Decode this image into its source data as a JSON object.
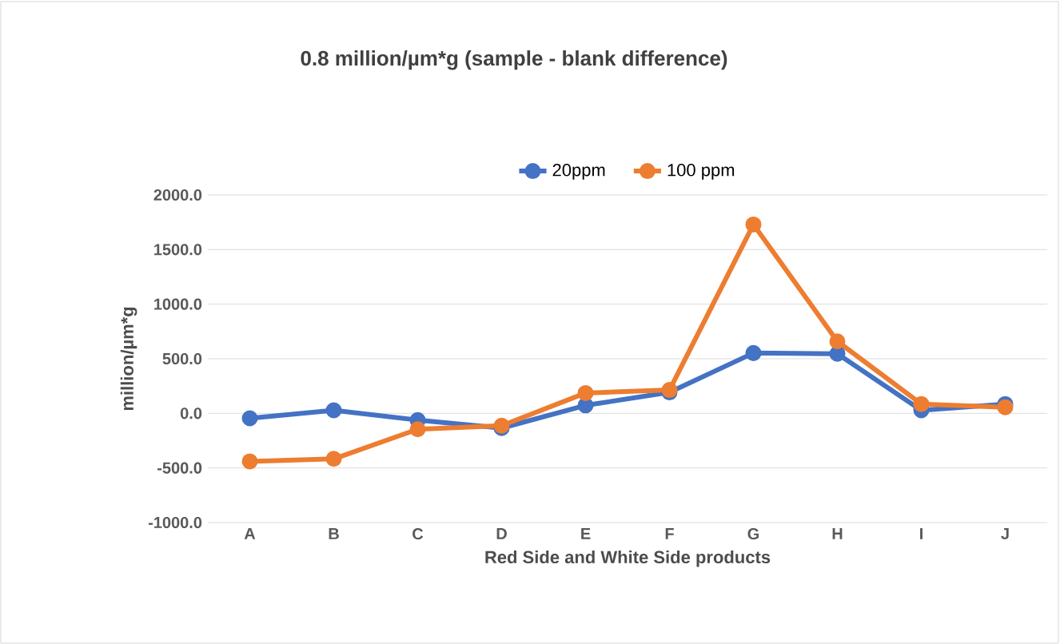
{
  "chart_data": {
    "type": "line",
    "title": "0.8 million/µm*g (sample - blank difference)",
    "xlabel": "Red Side and White Side products",
    "ylabel": "million/µm*g",
    "categories": [
      "A",
      "B",
      "C",
      "D",
      "E",
      "F",
      "G",
      "H",
      "I",
      "J"
    ],
    "series": [
      {
        "name": "20ppm",
        "color": "#4472c4",
        "values": [
          -45,
          28,
          -62,
          -135,
          73,
          192,
          552,
          546,
          28,
          85
        ]
      },
      {
        "name": "100 ppm",
        "color": "#ed7d31",
        "values": [
          -440,
          -417,
          -146,
          -113,
          186,
          214,
          1730,
          659,
          85,
          56
        ]
      }
    ],
    "ylim": [
      -1000,
      2000
    ],
    "yticks": [
      {
        "value": -1000,
        "label": "-1000.0"
      },
      {
        "value": -500,
        "label": "-500.0"
      },
      {
        "value": 0,
        "label": "0.0"
      },
      {
        "value": 500,
        "label": "500.0"
      },
      {
        "value": 1000,
        "label": "1000.0"
      },
      {
        "value": 1500,
        "label": "1500.0"
      },
      {
        "value": 2000,
        "label": "2000.0"
      }
    ],
    "grid": "y",
    "legend": "top",
    "marker": "circle",
    "line_style": "solid"
  }
}
